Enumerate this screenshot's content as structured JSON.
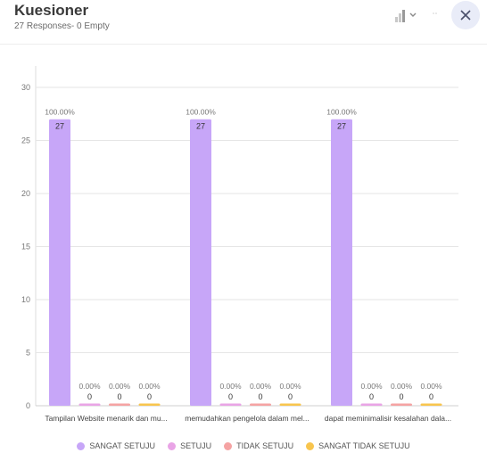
{
  "header": {
    "title": "Kuesioner",
    "subtitle": "27 Responses- 0 Empty",
    "icons": {
      "chart_type": "bar-chart-icon",
      "dropdown": "chevron-down-icon",
      "more": "more-icon",
      "close": "close-icon"
    }
  },
  "colors": {
    "text": "#3a3a3a",
    "grid": "#e6e6e6",
    "close_bg": "#e9ecf8"
  },
  "chart_data": {
    "type": "bar",
    "categories": [
      "Tampilan Website menarik dan mu...",
      "memudahkan pengelola dalam mel...",
      "dapat meminimalisir kesalahan dala..."
    ],
    "series": [
      {
        "name": "SANGAT SETUJU",
        "color": "#c7a6f8",
        "values": [
          27,
          27,
          27
        ],
        "percent_labels": [
          "100.00%",
          "100.00%",
          "100.00%"
        ]
      },
      {
        "name": "SETUJU",
        "color": "#e9a4e6",
        "values": [
          0,
          0,
          0
        ],
        "percent_labels": [
          "0.00%",
          "0.00%",
          "0.00%"
        ]
      },
      {
        "name": "TIDAK SETUJU",
        "color": "#f5a3a3",
        "values": [
          0,
          0,
          0
        ],
        "percent_labels": [
          "0.00%",
          "0.00%",
          "0.00%"
        ]
      },
      {
        "name": "SANGAT TIDAK SETUJU",
        "color": "#f8c54e",
        "values": [
          0,
          0,
          0
        ],
        "percent_labels": [
          "0.00%",
          "0.00%",
          "0.00%"
        ]
      }
    ],
    "ylim": [
      0,
      30
    ],
    "yticks": [
      0,
      5,
      10,
      15,
      20,
      25,
      30
    ],
    "grid": true,
    "legend": "bottom"
  }
}
